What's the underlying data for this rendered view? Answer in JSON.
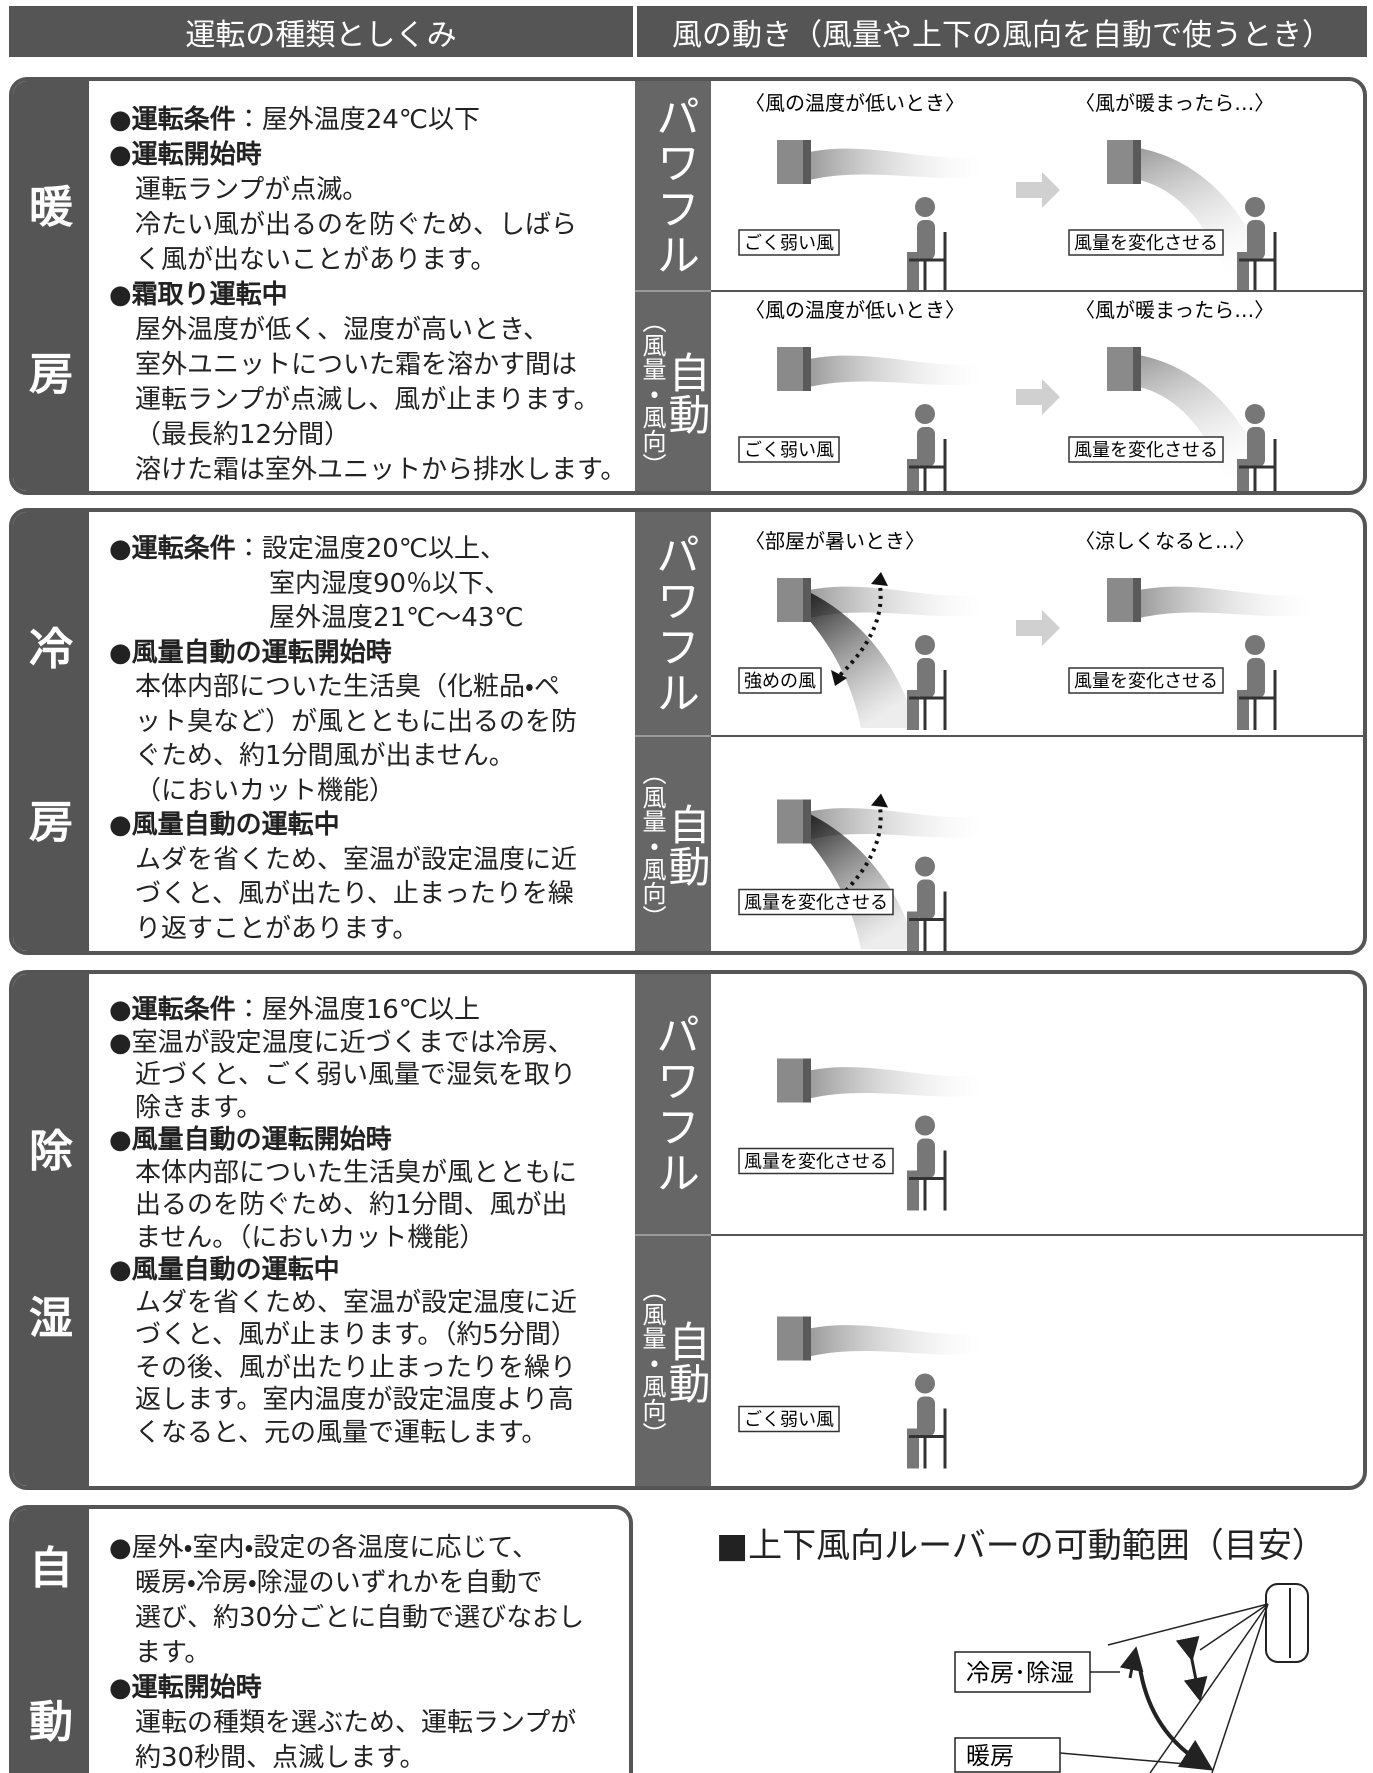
{
  "header": {
    "left": "運転の種類としくみ",
    "right": "風の動き（風量や上下の風向を自動で使うとき）"
  },
  "sections": [
    {
      "mode": [
        "暖",
        "房"
      ],
      "lines": [
        {
          "b": "●運転条件",
          "t": "：屋外温度24℃以下"
        },
        {
          "b": "●運転開始時"
        },
        {
          "i": "運転ランプが点滅。"
        },
        {
          "i": "冷たい風が出るのを防ぐため、しばら"
        },
        {
          "i": "く風が出ないことがあります。"
        },
        {
          "b": "●霜取り運転中"
        },
        {
          "i": "屋外温度が低く、湿度が高いとき、"
        },
        {
          "i": "室外ユニットについた霜を溶かす間は"
        },
        {
          "i": "運転ランプが点滅し、風が止まります。"
        },
        {
          "i": "（最長約12分間）"
        },
        {
          "i": "溶けた霜は室外ユニットから排水します。"
        }
      ],
      "rows": [
        {
          "label": "パワフル",
          "captions": [
            "〈風の温度が低いとき〉",
            "〈風が暖まったら…〉"
          ],
          "boxes": [
            "ごく弱い風",
            "風量を変化させる"
          ]
        },
        {
          "label_sub": "（風量・風向）",
          "label_main": "自動",
          "captions": [
            "〈風の温度が低いとき〉",
            "〈風が暖まったら…〉"
          ],
          "boxes": [
            "ごく弱い風",
            "風量を変化させる"
          ]
        }
      ]
    },
    {
      "mode": [
        "冷",
        "房"
      ],
      "lines": [
        {
          "b": "●運転条件",
          "t": "：設定温度20℃以上、"
        },
        {
          "i2": "室内湿度90％以下、"
        },
        {
          "i2": "屋外温度21℃～43℃"
        },
        {
          "b": "●風量自動の運転開始時"
        },
        {
          "i": "本体内部についた生活臭（化粧品・ペ"
        },
        {
          "i": "ット臭など）が風とともに出るのを防"
        },
        {
          "i": "ぐため、約1分間風が出ません。"
        },
        {
          "i": "（においカット機能）"
        },
        {
          "b": "●風量自動の運転中"
        },
        {
          "i": "ムダを省くため、室温が設定温度に近"
        },
        {
          "i": "づくと、風が出たり、止まったりを繰"
        },
        {
          "i": "り返すことがあります。"
        }
      ],
      "rows": [
        {
          "label": "パワフル",
          "captions": [
            "〈部屋が暑いとき〉",
            "〈涼しくなると…〉"
          ],
          "boxes": [
            "強めの風",
            "風量を変化させる"
          ]
        },
        {
          "label_sub": "（風量・風向）",
          "label_main": "自動",
          "captions": [],
          "boxes": [
            "風量を変化させる"
          ]
        }
      ]
    },
    {
      "mode": [
        "除",
        "湿"
      ],
      "lines": [
        {
          "b": "●運転条件",
          "t": "：屋外温度16℃以上"
        },
        {
          "t": "●室温が設定温度に近づくまでは冷房、"
        },
        {
          "i": "近づくと、ごく弱い風量で湿気を取り"
        },
        {
          "i": "除きます。"
        },
        {
          "b": "●風量自動の運転開始時"
        },
        {
          "i": "本体内部についた生活臭が風とともに"
        },
        {
          "i": "出るのを防ぐため、約1分間、風が出"
        },
        {
          "i": "ません。（においカット機能）"
        },
        {
          "b": "●風量自動の運転中"
        },
        {
          "i": "ムダを省くため、室温が設定温度に近"
        },
        {
          "i": "づくと、風が止まります。（約5分間）"
        },
        {
          "i": "その後、風が出たり止まったりを繰り"
        },
        {
          "i": "返します。室内温度が設定温度より高"
        },
        {
          "i": "くなると、元の風量で運転します。"
        }
      ],
      "rows": [
        {
          "label": "パワフル",
          "captions": [],
          "boxes": [
            "風量を変化させる"
          ]
        },
        {
          "label_sub": "（風量・風向）",
          "label_main": "自動",
          "captions": [],
          "boxes": [
            "ごく弱い風"
          ]
        }
      ]
    },
    {
      "mode": [
        "自",
        "動"
      ],
      "lines": [
        {
          "t": "●屋外・室内・設定の各温度に応じて、"
        },
        {
          "i": "暖房・冷房・除湿のいずれかを自動で"
        },
        {
          "i": "選び、約30分ごとに自動で選びなおし"
        },
        {
          "i": "ます。"
        },
        {
          "b": "●運転開始時"
        },
        {
          "i": "運転の種類を選ぶため、運転ランプが"
        },
        {
          "i": "約30秒間、点滅します。"
        }
      ]
    }
  ],
  "louver": {
    "title": "■上下風向ルーバーの可動範囲（目安）",
    "labels": [
      "冷房･除湿",
      "暖房"
    ]
  }
}
